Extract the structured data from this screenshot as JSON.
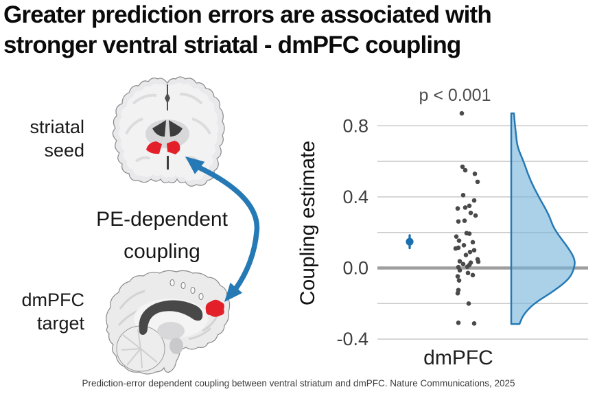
{
  "title": {
    "line1": "Greater prediction errors are associated with",
    "line2": "stronger ventral striatal - dmPFC coupling"
  },
  "diagram": {
    "seed_label_line1": "striatal",
    "seed_label_line2": "seed",
    "arrow_label_line1": "PE-dependent",
    "arrow_label_line2": "coupling",
    "target_label_line1": "dmPFC",
    "target_label_line2": "target",
    "region_color": "#e3202a",
    "arrow_color": "#2579b5"
  },
  "chart_data": {
    "type": "scatter",
    "subtype": "raincloud (jittered scatter + mean with error bar + half-violin density)",
    "significance_label": "p < 0.001",
    "ylabel": "Coupling estimate",
    "category": "dmPFC",
    "ylim": [
      -0.45,
      0.92
    ],
    "gridline_values": [
      0.8,
      0.6,
      0.4,
      0.2,
      0.0,
      -0.2,
      -0.4
    ],
    "ytick_values": [
      0.8,
      0.4,
      0.0,
      -0.4
    ],
    "ytick_labels": [
      "0.8",
      "0.4",
      "0.0",
      "-0.4"
    ],
    "zero_line_value": 0.0,
    "gridline_color": "#c9c9c9",
    "zero_line_color": "#9e9e9e",
    "tick_color": "#3f3f3f",
    "point_color": "#4a4a4a",
    "mean": {
      "value": 0.148,
      "ci_low": 0.112,
      "ci_high": 0.184,
      "color": "#1a6faf"
    },
    "points": [
      [
        -7,
        0.87
      ],
      [
        -6,
        0.57
      ],
      [
        -2,
        0.55
      ],
      [
        12,
        0.53
      ],
      [
        16,
        0.485
      ],
      [
        -5,
        0.41
      ],
      [
        11,
        0.38
      ],
      [
        -13,
        0.335
      ],
      [
        -2,
        0.34
      ],
      [
        4,
        0.35
      ],
      [
        6,
        0.31
      ],
      [
        13,
        0.295
      ],
      [
        -12,
        0.262
      ],
      [
        -3,
        0.266
      ],
      [
        0,
        0.196
      ],
      [
        4,
        0.193
      ],
      [
        -15,
        0.177
      ],
      [
        -11,
        0.154
      ],
      [
        9,
        0.145
      ],
      [
        -4,
        0.128
      ],
      [
        -12,
        0.114
      ],
      [
        -16,
        0.11
      ],
      [
        11,
        0.1
      ],
      [
        5,
        0.09
      ],
      [
        -1,
        0.073
      ],
      [
        16,
        0.049
      ],
      [
        17,
        0.035
      ],
      [
        -10,
        0.038
      ],
      [
        6,
        0.03
      ],
      [
        -5,
        0.022
      ],
      [
        4,
        0.017
      ],
      [
        1,
        0.007
      ],
      [
        -12,
        0.005
      ],
      [
        -10,
        -0.013
      ],
      [
        2,
        -0.028
      ],
      [
        9,
        -0.04
      ],
      [
        -13,
        -0.047
      ],
      [
        -11,
        -0.07
      ],
      [
        -12,
        -0.124
      ],
      [
        -13,
        -0.142
      ],
      [
        3,
        -0.2
      ],
      [
        -12,
        -0.308
      ],
      [
        11,
        -0.312
      ]
    ],
    "violin": {
      "edge_color": "#2579b5",
      "fill_color": "rgba(120,180,220,0.62)",
      "profile": [
        [
          0.87,
          4
        ],
        [
          0.82,
          5
        ],
        [
          0.75,
          7
        ],
        [
          0.68,
          9
        ],
        [
          0.6,
          18
        ],
        [
          0.5,
          27
        ],
        [
          0.4,
          40
        ],
        [
          0.3,
          55
        ],
        [
          0.22,
          62
        ],
        [
          0.12,
          82
        ],
        [
          0.05,
          93
        ],
        [
          0.0,
          92
        ],
        [
          -0.06,
          85
        ],
        [
          -0.13,
          62
        ],
        [
          -0.2,
          33
        ],
        [
          -0.26,
          18
        ],
        [
          -0.315,
          12
        ]
      ]
    }
  },
  "caption": "Prediction-error dependent coupling between ventral striatum and dmPFC. Nature Communications, 2025"
}
